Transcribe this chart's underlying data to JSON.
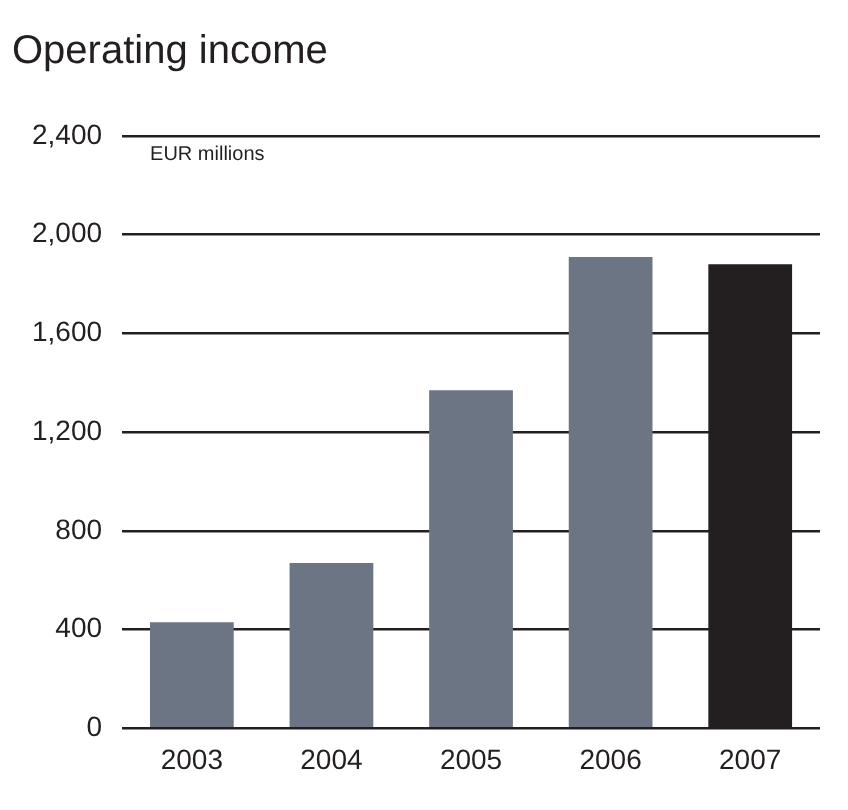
{
  "chart_data": {
    "type": "bar",
    "title": "Operating income",
    "annotations": [
      "EUR millions"
    ],
    "categories": [
      "2003",
      "2004",
      "2005",
      "2006",
      "2007"
    ],
    "values": [
      430,
      670,
      1370,
      1910,
      1880
    ],
    "colors": [
      "#6b7583",
      "#6b7583",
      "#6b7583",
      "#6b7583",
      "#231f20"
    ],
    "ylim": [
      0,
      2400
    ],
    "yticks": [
      0,
      400,
      800,
      {
        "value": 1200,
        "label": "1,200"
      },
      {
        "value": 1600,
        "label": "1,600"
      },
      {
        "value": 2000,
        "label": "2,000"
      },
      {
        "value": 2400,
        "label": "2,400"
      }
    ],
    "grid": "y",
    "legend": false
  }
}
